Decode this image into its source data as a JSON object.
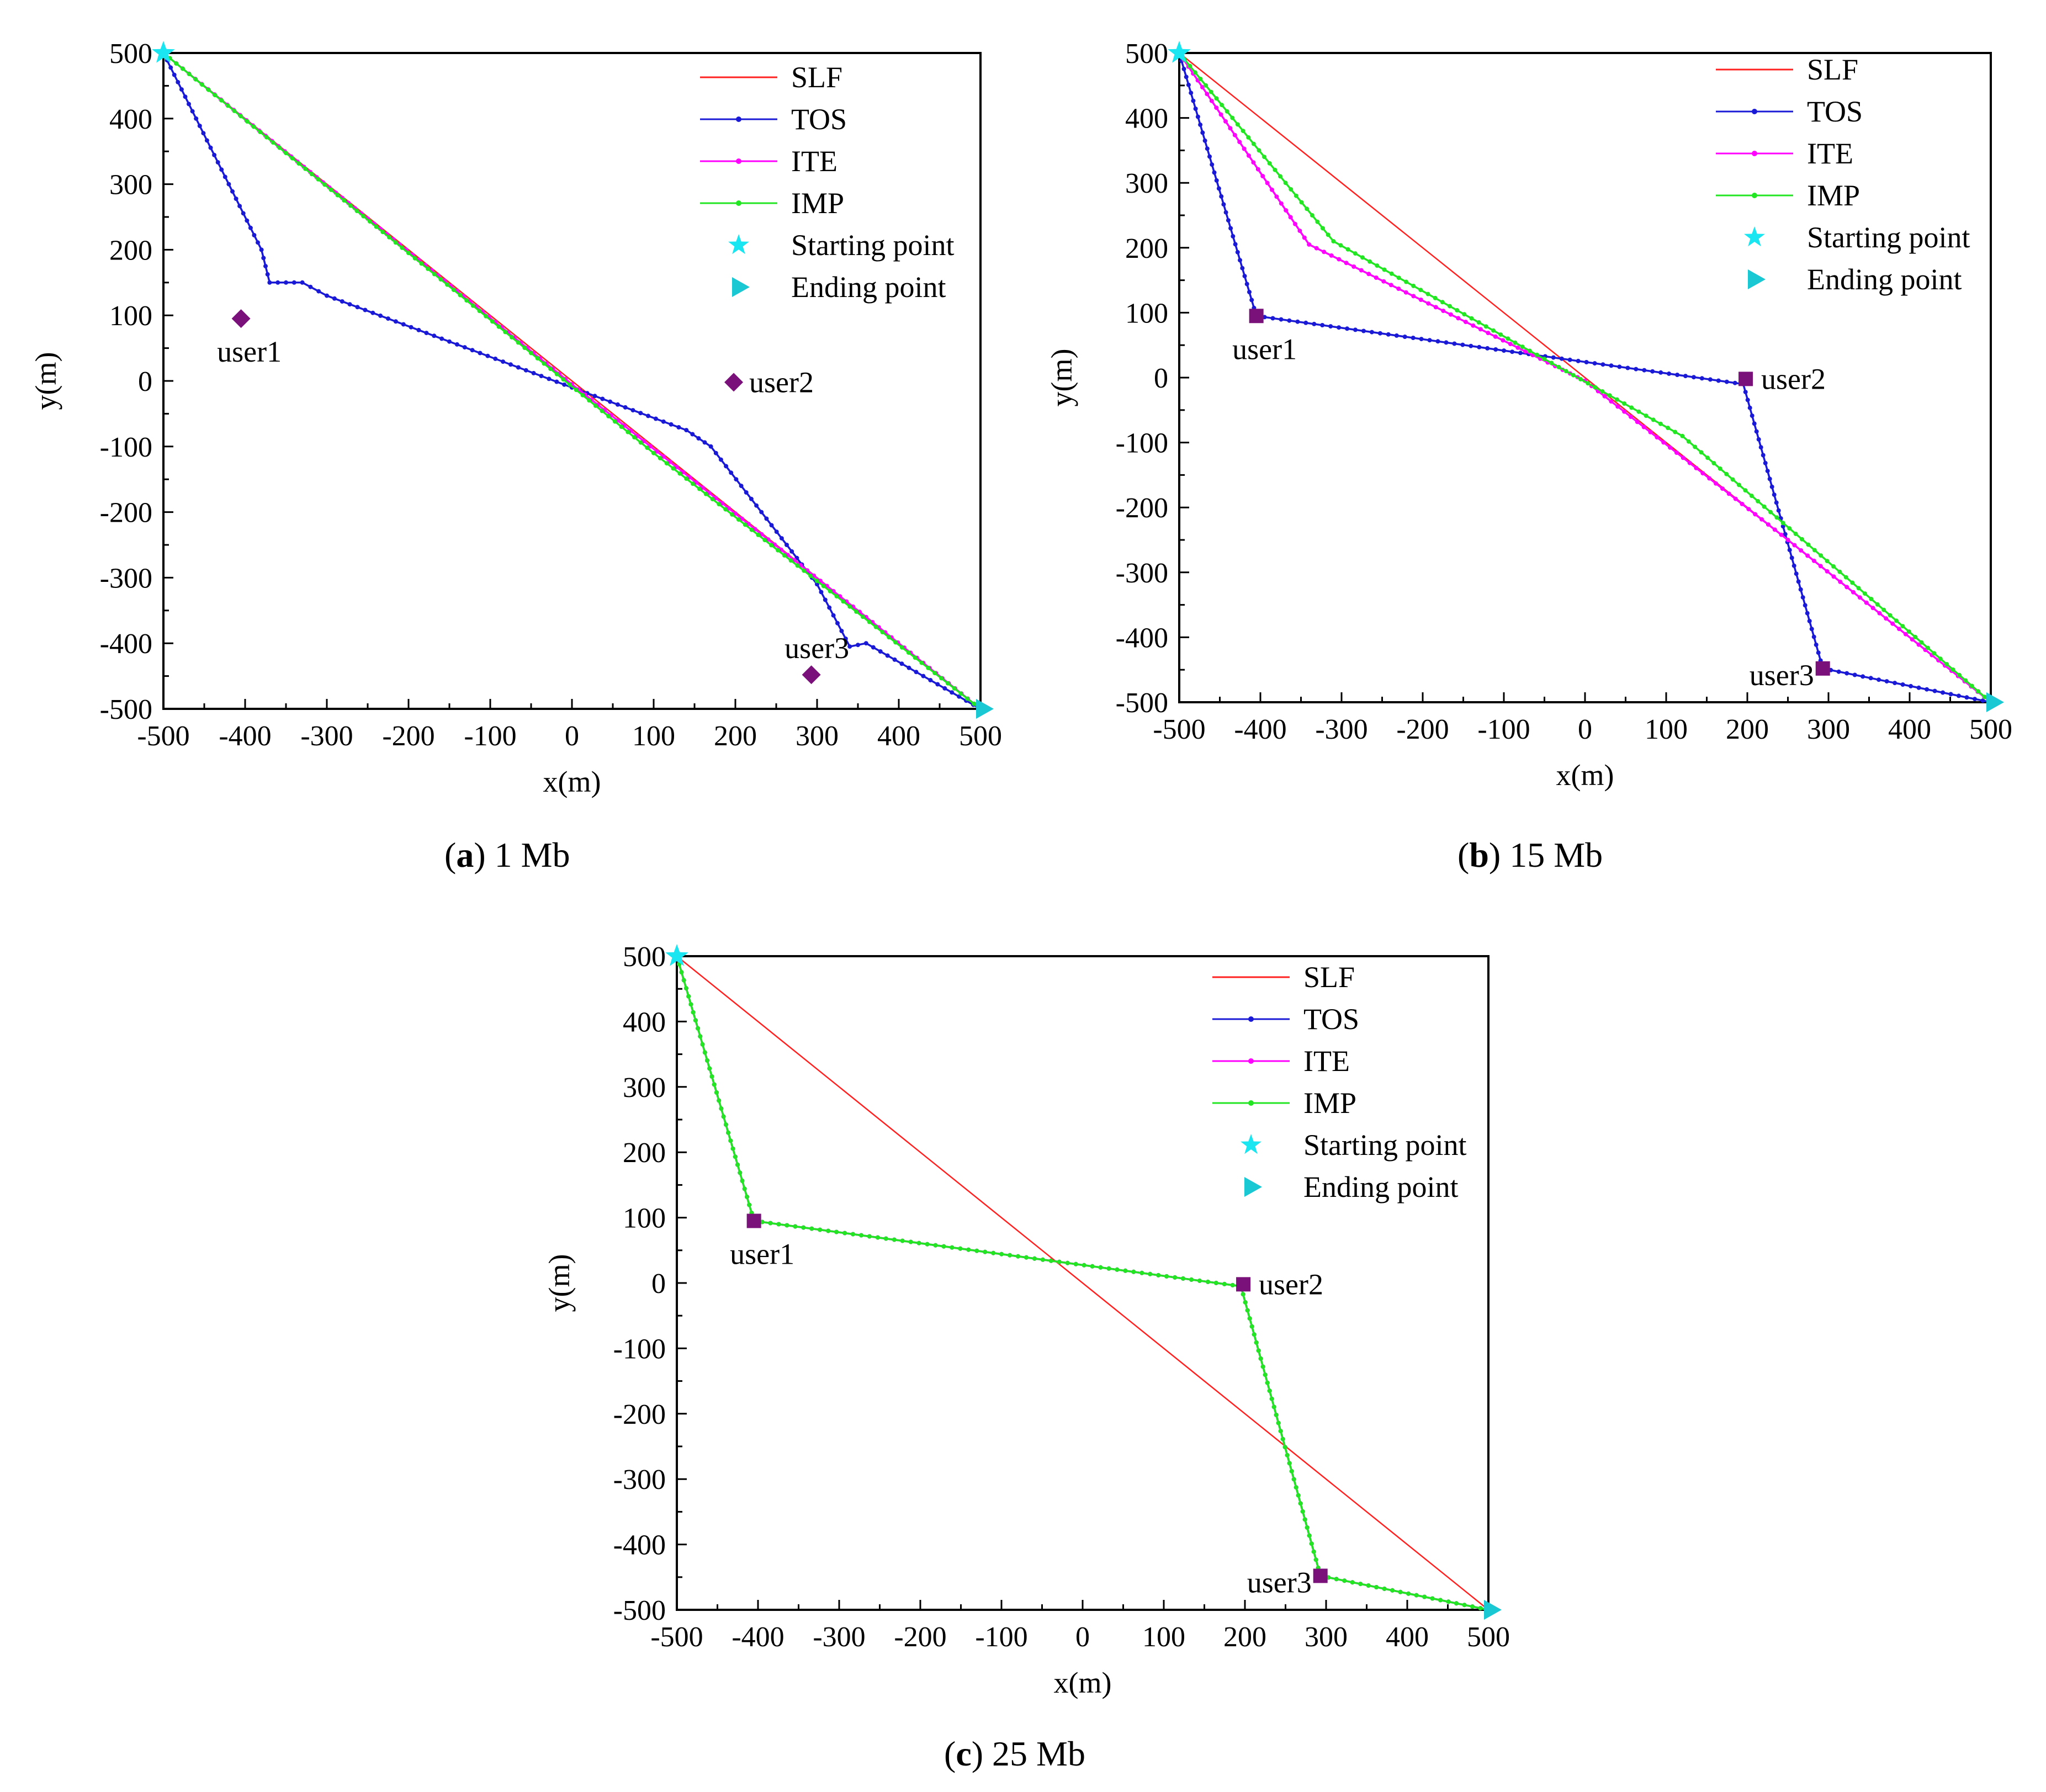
{
  "figure": {
    "captions": [
      {
        "open": "(",
        "letter": "a",
        "close": ")",
        "text": " 1 Mb"
      },
      {
        "open": "(",
        "letter": "b",
        "close": ")",
        "text": " 15 Mb"
      },
      {
        "open": "(",
        "letter": "c",
        "close": ")",
        "text": " 25 Mb"
      }
    ]
  },
  "colors": {
    "SLF": "#ff2020",
    "TOS": "#1a1ad6",
    "ITE": "#ff00ff",
    "IMP": "#22e622",
    "start": "#19e6f0",
    "end": "#19c8d2",
    "user": "#7a117a"
  },
  "chart_data": [
    {
      "type": "line",
      "title": "1 Mb",
      "xlabel": "x(m)",
      "ylabel": "y(m)",
      "xlim": [
        -500,
        500
      ],
      "ylim": [
        -500,
        500
      ],
      "xticks": [
        -500,
        -400,
        -300,
        -200,
        -100,
        0,
        100,
        200,
        300,
        400,
        500
      ],
      "yticks": [
        -500,
        -400,
        -300,
        -200,
        -100,
        0,
        100,
        200,
        300,
        400,
        500
      ],
      "legend": [
        "SLF",
        "TOS",
        "ITE",
        "IMP",
        "Starting point",
        "Ending point"
      ],
      "legend_position": "top-right",
      "series": [
        {
          "name": "SLF",
          "points": [
            [
              -500,
              500
            ],
            [
              500,
              -500
            ]
          ]
        },
        {
          "name": "TOS",
          "points": [
            [
              -500,
              500
            ],
            [
              -380,
              200
            ],
            [
              -370,
              150
            ],
            [
              -330,
              150
            ],
            [
              -300,
              130
            ],
            [
              0,
              -10
            ],
            [
              140,
              -75
            ],
            [
              170,
              -100
            ],
            [
              300,
              -310
            ],
            [
              340,
              -405
            ],
            [
              360,
              -400
            ],
            [
              500,
              -500
            ]
          ]
        },
        {
          "name": "ITE",
          "points": [
            [
              -500,
              500
            ],
            [
              0,
              -5
            ],
            [
              360,
              -360
            ],
            [
              500,
              -500
            ]
          ]
        },
        {
          "name": "IMP",
          "points": [
            [
              -500,
              500
            ],
            [
              100,
              -110
            ],
            [
              500,
              -500
            ]
          ]
        }
      ],
      "users": [
        {
          "label": "user1",
          "x": -405,
          "y": 95,
          "marker": "diamond",
          "label_side": "below"
        },
        {
          "label": "user2",
          "x": 198,
          "y": -2,
          "marker": "diamond",
          "label_side": "right"
        },
        {
          "label": "user3",
          "x": 293,
          "y": -448,
          "marker": "diamond",
          "label_side": "above"
        }
      ],
      "start": {
        "x": -500,
        "y": 500
      },
      "end": {
        "x": 500,
        "y": -500
      }
    },
    {
      "type": "line",
      "title": "15 Mb",
      "xlabel": "x(m)",
      "ylabel": "y(m)",
      "xlim": [
        -500,
        500
      ],
      "ylim": [
        -500,
        500
      ],
      "xticks": [
        -500,
        -400,
        -300,
        -200,
        -100,
        0,
        100,
        200,
        300,
        400,
        500
      ],
      "yticks": [
        -500,
        -400,
        -300,
        -200,
        -100,
        0,
        100,
        200,
        300,
        400,
        500
      ],
      "legend": [
        "SLF",
        "TOS",
        "ITE",
        "IMP",
        "Starting point",
        "Ending point"
      ],
      "legend_position": "top-right",
      "series": [
        {
          "name": "SLF",
          "points": [
            [
              -500,
              500
            ],
            [
              500,
              -500
            ]
          ]
        },
        {
          "name": "TOS",
          "points": [
            [
              -500,
              500
            ],
            [
              -405,
              95
            ],
            [
              195,
              -10
            ],
            [
              293,
              -448
            ],
            [
              500,
              -500
            ]
          ]
        },
        {
          "name": "ITE",
          "points": [
            [
              -500,
              500
            ],
            [
              -340,
              205
            ],
            [
              0,
              -5
            ],
            [
              250,
              -250
            ],
            [
              500,
              -500
            ]
          ]
        },
        {
          "name": "IMP",
          "points": [
            [
              -500,
              500
            ],
            [
              -310,
              210
            ],
            [
              120,
              -90
            ],
            [
              500,
              -500
            ]
          ]
        }
      ],
      "users": [
        {
          "label": "user1",
          "x": -405,
          "y": 95,
          "marker": "square",
          "label_side": "below"
        },
        {
          "label": "user2",
          "x": 198,
          "y": -2,
          "marker": "square",
          "label_side": "right"
        },
        {
          "label": "user3",
          "x": 293,
          "y": -448,
          "marker": "square",
          "label_side": "left"
        }
      ],
      "start": {
        "x": -500,
        "y": 500
      },
      "end": {
        "x": 500,
        "y": -500
      }
    },
    {
      "type": "line",
      "title": "25 Mb",
      "xlabel": "x(m)",
      "ylabel": "y(m)",
      "xlim": [
        -500,
        500
      ],
      "ylim": [
        -500,
        500
      ],
      "xticks": [
        -500,
        -400,
        -300,
        -200,
        -100,
        0,
        100,
        200,
        300,
        400,
        500
      ],
      "yticks": [
        -500,
        -400,
        -300,
        -200,
        -100,
        0,
        100,
        200,
        300,
        400,
        500
      ],
      "legend": [
        "SLF",
        "TOS",
        "ITE",
        "IMP",
        "Starting point",
        "Ending point"
      ],
      "legend_position": "top-right",
      "series": [
        {
          "name": "SLF",
          "points": [
            [
              -500,
              500
            ],
            [
              500,
              -500
            ]
          ]
        },
        {
          "name": "TOS",
          "points": [
            [
              -500,
              500
            ],
            [
              -405,
              95
            ],
            [
              195,
              -5
            ],
            [
              293,
              -448
            ],
            [
              500,
              -500
            ]
          ]
        },
        {
          "name": "ITE",
          "points": [
            [
              -500,
              500
            ],
            [
              -405,
              95
            ],
            [
              195,
              -5
            ],
            [
              293,
              -448
            ],
            [
              500,
              -500
            ]
          ]
        },
        {
          "name": "IMP",
          "points": [
            [
              -500,
              500
            ],
            [
              -405,
              95
            ],
            [
              195,
              -5
            ],
            [
              293,
              -448
            ],
            [
              500,
              -500
            ]
          ]
        }
      ],
      "users": [
        {
          "label": "user1",
          "x": -405,
          "y": 95,
          "marker": "square",
          "label_side": "below"
        },
        {
          "label": "user2",
          "x": 198,
          "y": -2,
          "marker": "square",
          "label_side": "right"
        },
        {
          "label": "user3",
          "x": 293,
          "y": -448,
          "marker": "square",
          "label_side": "left"
        }
      ],
      "start": {
        "x": -500,
        "y": 500
      },
      "end": {
        "x": 500,
        "y": -500
      }
    }
  ]
}
